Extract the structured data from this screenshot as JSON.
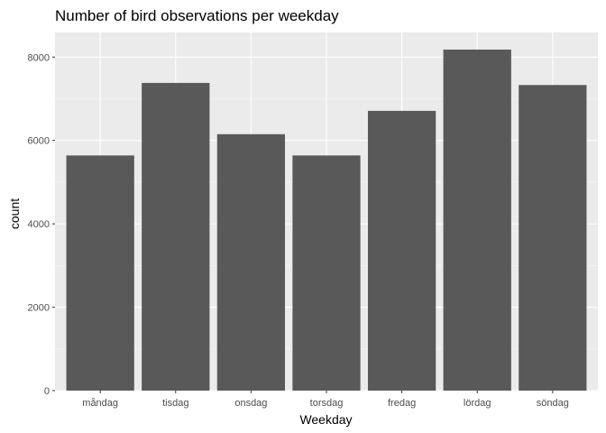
{
  "chart_data": {
    "type": "bar",
    "title": "Number of bird observations per weekday",
    "xlabel": "Weekday",
    "ylabel": "count",
    "categories": [
      "måndag",
      "tisdag",
      "onsdag",
      "torsdag",
      "fredag",
      "lördag",
      "söndag"
    ],
    "values": [
      5640,
      7380,
      6150,
      5640,
      6710,
      8180,
      7330
    ],
    "ylim": [
      0,
      8590
    ],
    "yticks": [
      0,
      2000,
      4000,
      6000,
      8000
    ],
    "ytick_labels": [
      "0",
      "2000",
      "4000",
      "6000",
      "8000"
    ],
    "grid": true,
    "colors": {
      "bar": "#595959",
      "panel": "#ebebeb",
      "grid_major": "#ffffff",
      "grid_minor": "#f7f7f7"
    }
  }
}
